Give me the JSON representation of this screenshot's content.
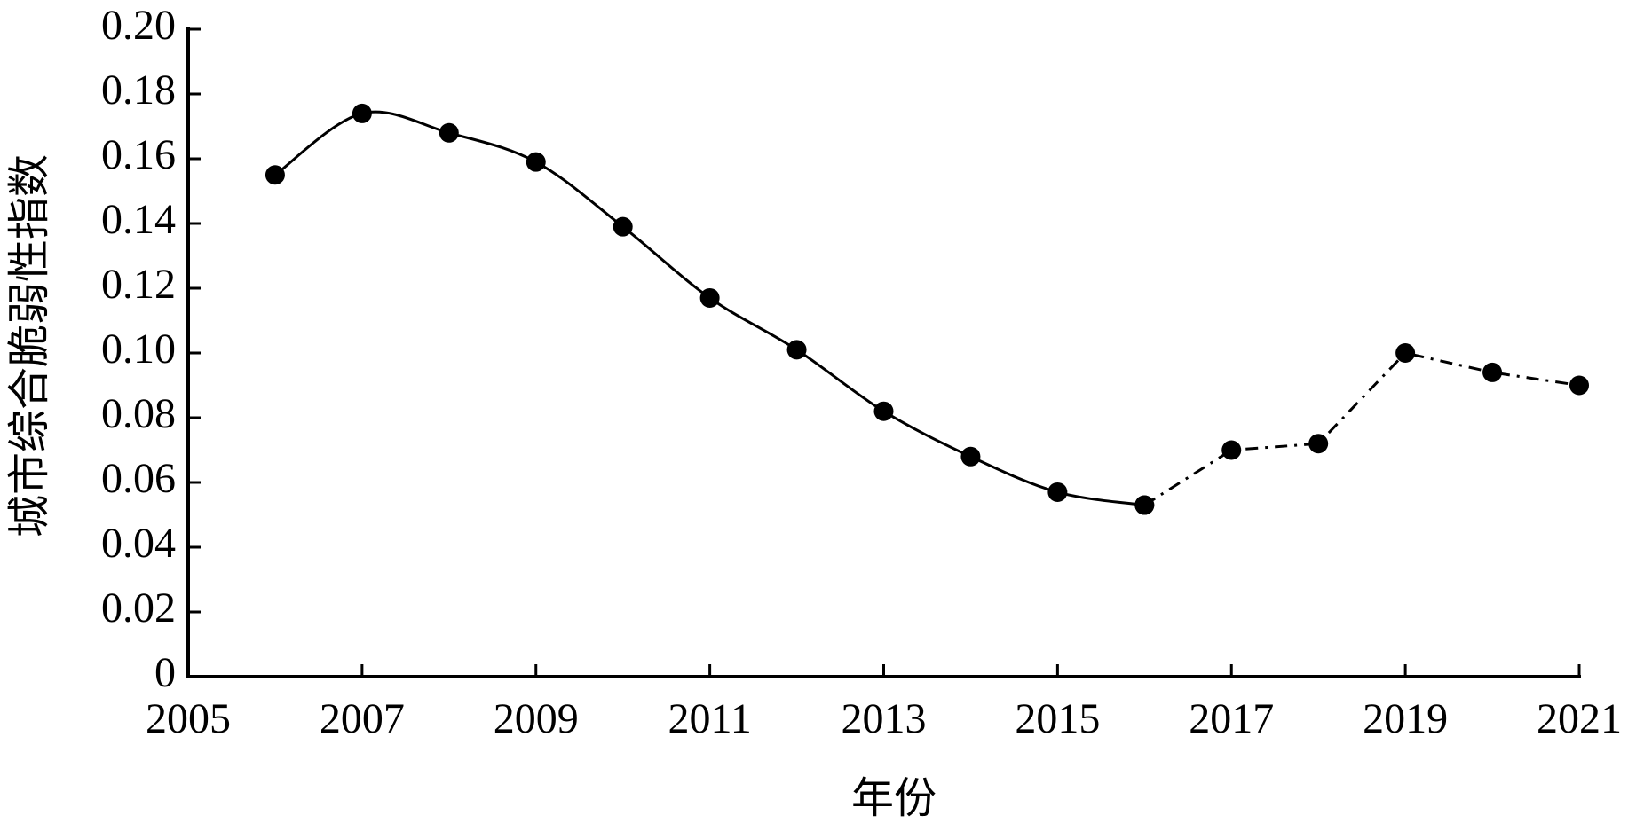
{
  "chart_data": {
    "type": "line",
    "x_label": "年份",
    "y_label": "城市综合脆弱性指数",
    "x": [
      2006,
      2007,
      2008,
      2009,
      2010,
      2011,
      2012,
      2013,
      2014,
      2015,
      2016,
      2017,
      2018,
      2019,
      2020,
      2021
    ],
    "series": [
      {
        "color": "#000000",
        "line": "solid",
        "smooth": true,
        "values": [
          0.155,
          0.174,
          0.168,
          0.159,
          0.139,
          0.117,
          0.101,
          0.082,
          0.068,
          0.057,
          0.053,
          null,
          null,
          null,
          null,
          null
        ]
      },
      {
        "color": "#000000",
        "line": "dashdot",
        "smooth": false,
        "values": [
          null,
          null,
          null,
          null,
          null,
          null,
          null,
          null,
          null,
          null,
          0.053,
          0.07,
          0.072,
          0.1,
          0.094,
          0.09
        ]
      }
    ],
    "xlim": [
      2005,
      2021
    ],
    "xticks": [
      2005,
      2007,
      2009,
      2011,
      2013,
      2015,
      2017,
      2019,
      2021
    ],
    "ylim": [
      0,
      0.2
    ],
    "yticks": [
      0,
      0.02,
      0.04,
      0.06,
      0.08,
      {
        "value": 0.1,
        "label": "0.10"
      },
      0.12,
      0.14,
      0.16,
      0.18,
      {
        "value": 0.2,
        "label": "0.20"
      }
    ],
    "grid": false
  }
}
